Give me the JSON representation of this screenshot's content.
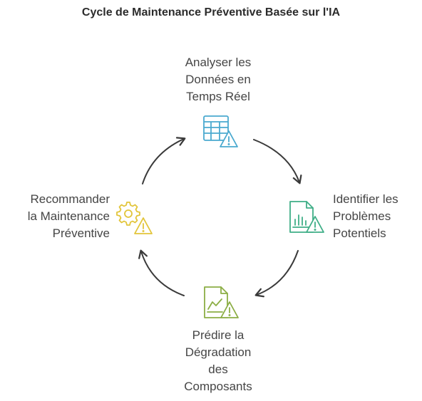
{
  "title": "Cycle de Maintenance Préventive Basée sur l'IA",
  "steps": {
    "analyze": {
      "lines": [
        "Analyser les",
        "Données en",
        "Temps Réel"
      ],
      "icon": "table-warning-icon",
      "color": "#4aa9cf"
    },
    "identify": {
      "lines": [
        "Identifier les",
        "Problèmes",
        "Potentiels"
      ],
      "icon": "chart-document-warning-icon",
      "color": "#3fae87"
    },
    "predict": {
      "lines": [
        "Prédire la",
        "Dégradation",
        "des",
        "Composants"
      ],
      "icon": "trend-document-warning-icon",
      "color": "#8cae45"
    },
    "recommend": {
      "lines": [
        "Recommander",
        "la Maintenance",
        "Préventive"
      ],
      "icon": "gear-warning-icon",
      "color": "#e2c53a"
    }
  },
  "arrow_color": "#3a3a3a"
}
